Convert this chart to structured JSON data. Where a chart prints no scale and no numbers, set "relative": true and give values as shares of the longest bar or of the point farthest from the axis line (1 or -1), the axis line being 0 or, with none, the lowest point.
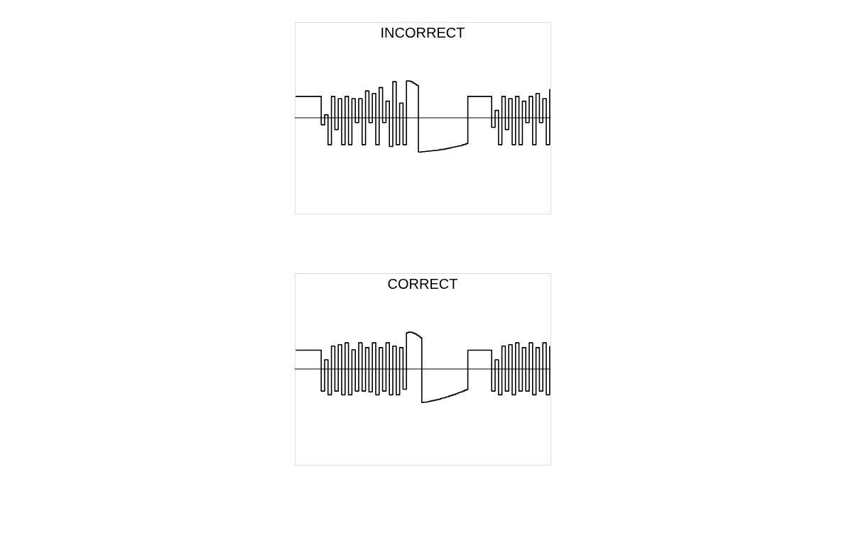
{
  "chart_data": [
    {
      "type": "step",
      "title": "INCORRECT",
      "relative": true,
      "legend": false,
      "line_style": "solid",
      "marker": "none",
      "categories": [
        null,
        null,
        null,
        null,
        null,
        null,
        null,
        null,
        null,
        null,
        null,
        null,
        null,
        null,
        null,
        null,
        null,
        null,
        null,
        null,
        null,
        null,
        null,
        null,
        null,
        null,
        null,
        null,
        null,
        null,
        null,
        null,
        null,
        null,
        null,
        null,
        null,
        null,
        null,
        null,
        null,
        null,
        null,
        null,
        null,
        null,
        null,
        null,
        null,
        null,
        null,
        null,
        null,
        null,
        null,
        null,
        null,
        null,
        null,
        null,
        null,
        null,
        null,
        null,
        null,
        null,
        null,
        null,
        null,
        null,
        null,
        null,
        null,
        null,
        null,
        null,
        null,
        null,
        null,
        null,
        null,
        null,
        null,
        null,
        null,
        null,
        null,
        null,
        null,
        null,
        null,
        null,
        null,
        null,
        null,
        null,
        null,
        null,
        null,
        null,
        null,
        null,
        null,
        null,
        null,
        null,
        null,
        null,
        null,
        null,
        null,
        null,
        null,
        null,
        null,
        null,
        null,
        null,
        null,
        null,
        null,
        null,
        null,
        null,
        null,
        null,
        null,
        null,
        null,
        null,
        null,
        null,
        null,
        null,
        null,
        null,
        null,
        null,
        null,
        null,
        null,
        null,
        null,
        null,
        null,
        null,
        null,
        null,
        null,
        null
      ],
      "series": [
        {
          "color": "#000000",
          "values": [
            0.58,
            0.58,
            0.58,
            0.58,
            0.58,
            0.58,
            0.58,
            0.58,
            0.58,
            0.58,
            0.58,
            0.58,
            0.58,
            0.58,
            0.58,
            -0.19,
            -0.19,
            0.08,
            0.08,
            -0.73,
            -0.73,
            0.58,
            0.58,
            -0.32,
            -0.32,
            0.52,
            0.52,
            -0.73,
            -0.73,
            0.58,
            0.58,
            -0.73,
            -0.73,
            0.52,
            0.52,
            -0.13,
            -0.13,
            0.52,
            0.52,
            -0.73,
            -0.73,
            0.73,
            0.73,
            -0.13,
            -0.13,
            0.66,
            0.66,
            -0.73,
            -0.73,
            0.82,
            0.82,
            -0.13,
            -0.13,
            0.45,
            0.45,
            -0.78,
            -0.78,
            0.98,
            0.98,
            -0.73,
            -0.73,
            0.4,
            0.4,
            -0.73,
            -0.73,
            1.0,
            1.0,
            0.99,
            0.97,
            0.94,
            0.91,
            0.88,
            -0.93,
            -0.93,
            -0.92,
            -0.92,
            -0.91,
            -0.91,
            -0.9,
            -0.9,
            -0.89,
            -0.89,
            -0.88,
            -0.88,
            -0.87,
            -0.86,
            -0.86,
            -0.85,
            -0.84,
            -0.83,
            -0.82,
            -0.81,
            -0.8,
            -0.79,
            -0.78,
            -0.77,
            -0.76,
            -0.75,
            -0.73,
            -0.72,
            -0.7,
            0.58,
            0.58,
            0.58,
            0.58,
            0.58,
            0.58,
            0.58,
            0.58,
            0.58,
            0.58,
            0.58,
            0.58,
            0.58,
            0.58,
            -0.26,
            -0.26,
            0.2,
            0.2,
            -0.73,
            -0.73,
            0.58,
            0.58,
            -0.32,
            -0.32,
            0.52,
            0.52,
            -0.73,
            -0.73,
            0.58,
            0.58,
            -0.73,
            -0.73,
            0.45,
            0.45,
            -0.13,
            -0.13,
            0.58,
            0.58,
            -0.73,
            -0.73,
            0.66,
            0.66,
            -0.13,
            -0.13,
            0.52,
            0.52,
            -0.73,
            -0.73,
            0.78
          ]
        }
      ]
    },
    {
      "type": "step",
      "title": "CORRECT",
      "relative": true,
      "legend": false,
      "line_style": "solid",
      "marker": "none",
      "categories": [
        null,
        null,
        null,
        null,
        null,
        null,
        null,
        null,
        null,
        null,
        null,
        null,
        null,
        null,
        null,
        null,
        null,
        null,
        null,
        null,
        null,
        null,
        null,
        null,
        null,
        null,
        null,
        null,
        null,
        null,
        null,
        null,
        null,
        null,
        null,
        null,
        null,
        null,
        null,
        null,
        null,
        null,
        null,
        null,
        null,
        null,
        null,
        null,
        null,
        null,
        null,
        null,
        null,
        null,
        null,
        null,
        null,
        null,
        null,
        null,
        null,
        null,
        null,
        null,
        null,
        null,
        null,
        null,
        null,
        null,
        null,
        null,
        null,
        null,
        null,
        null,
        null,
        null,
        null,
        null,
        null,
        null,
        null,
        null,
        null,
        null,
        null,
        null,
        null,
        null,
        null,
        null,
        null,
        null,
        null,
        null,
        null,
        null,
        null,
        null,
        null,
        null,
        null,
        null,
        null,
        null,
        null,
        null,
        null,
        null,
        null,
        null,
        null,
        null,
        null,
        null,
        null,
        null,
        null,
        null,
        null,
        null,
        null,
        null,
        null,
        null,
        null,
        null,
        null,
        null,
        null,
        null,
        null,
        null,
        null,
        null,
        null,
        null,
        null,
        null,
        null,
        null,
        null,
        null,
        null,
        null,
        null,
        null,
        null,
        null
      ],
      "series": [
        {
          "color": "#000000",
          "values": [
            0.51,
            0.51,
            0.51,
            0.51,
            0.51,
            0.51,
            0.51,
            0.51,
            0.51,
            0.51,
            0.51,
            0.51,
            0.51,
            0.51,
            0.51,
            -0.6,
            -0.6,
            0.25,
            0.25,
            -0.7,
            -0.7,
            0.62,
            0.62,
            -0.6,
            -0.6,
            0.66,
            0.66,
            -0.7,
            -0.7,
            0.71,
            0.71,
            -0.7,
            -0.7,
            0.52,
            0.52,
            -0.6,
            -0.6,
            0.71,
            0.71,
            -0.6,
            -0.6,
            0.58,
            0.58,
            -0.62,
            -0.62,
            0.71,
            0.71,
            -0.7,
            -0.7,
            0.58,
            0.58,
            -0.6,
            -0.6,
            0.71,
            0.71,
            -0.7,
            -0.7,
            0.62,
            0.62,
            -0.7,
            -0.7,
            0.58,
            0.58,
            -0.55,
            -0.55,
            0.98,
            1.0,
            1.0,
            0.99,
            0.97,
            0.95,
            0.92,
            0.89,
            0.85,
            -0.91,
            -0.9,
            -0.9,
            -0.89,
            -0.88,
            -0.87,
            -0.86,
            -0.85,
            -0.84,
            -0.83,
            -0.82,
            -0.8,
            -0.79,
            -0.78,
            -0.76,
            -0.75,
            -0.73,
            -0.72,
            -0.7,
            -0.69,
            -0.67,
            -0.65,
            -0.63,
            -0.62,
            -0.6,
            -0.58,
            -0.56,
            0.51,
            0.51,
            0.51,
            0.51,
            0.51,
            0.51,
            0.51,
            0.51,
            0.51,
            0.51,
            0.51,
            0.51,
            0.51,
            0.51,
            -0.6,
            -0.6,
            0.25,
            0.25,
            -0.7,
            -0.7,
            0.62,
            0.62,
            -0.6,
            -0.6,
            0.66,
            0.66,
            -0.7,
            -0.7,
            0.71,
            0.71,
            -0.6,
            -0.6,
            0.58,
            0.58,
            -0.6,
            -0.6,
            0.71,
            0.71,
            -0.7,
            -0.7,
            0.58,
            0.58,
            -0.6,
            -0.6,
            0.71,
            0.71,
            -0.7,
            -0.7,
            0.62
          ]
        }
      ]
    }
  ]
}
